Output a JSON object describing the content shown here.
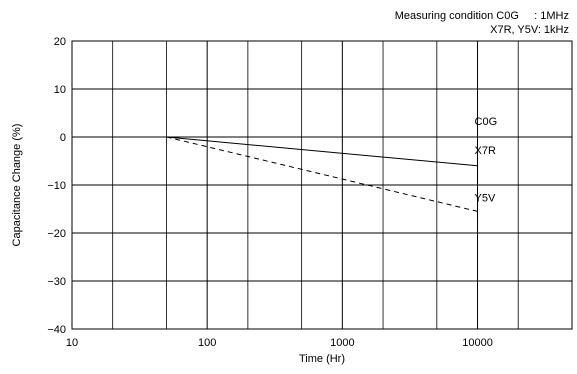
{
  "condition": {
    "line1": "Measuring condition C0G     : 1MHz",
    "line2": "X7R, Y5V: 1kHz"
  },
  "chart_data": {
    "type": "line",
    "xlabel": "Time (Hr)",
    "ylabel": "Capacitance Change (%)",
    "xscale": "log",
    "xlim": [
      10,
      50000
    ],
    "ylim": [
      -40,
      20
    ],
    "xticks": [
      10,
      100,
      1000,
      10000
    ],
    "xtick_labels": [
      "10",
      "100",
      "1000",
      "10000"
    ],
    "yticks": [
      20,
      10,
      0,
      -10,
      -20,
      -30,
      -40
    ],
    "ytick_labels": [
      "20",
      "10",
      "0",
      "−10",
      "−20",
      "−30",
      "−40"
    ],
    "grid": true,
    "series": [
      {
        "name": "C0G",
        "style": "dashdot",
        "x": [
          50,
          10000
        ],
        "y": [
          0,
          0
        ]
      },
      {
        "name": "X7R",
        "style": "solid",
        "x": [
          50,
          10000
        ],
        "y": [
          0,
          -6
        ]
      },
      {
        "name": "Y5V",
        "style": "dashed",
        "x": [
          50,
          10000
        ],
        "y": [
          0,
          -15.5
        ]
      }
    ],
    "marker_x": 10000,
    "marker_range": [
      -17,
      0
    ]
  }
}
